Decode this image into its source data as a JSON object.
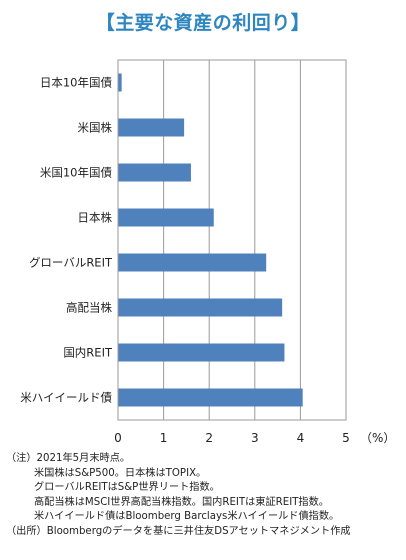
{
  "title": "【主要な資産の利回り】",
  "chart_data": {
    "type": "bar",
    "orientation": "horizontal",
    "categories": [
      "日本10年国債",
      "米国株",
      "米国10年国債",
      "日本株",
      "グローバルREIT",
      "高配当株",
      "国内REIT",
      "米ハイイールド債"
    ],
    "values": [
      0.08,
      1.45,
      1.6,
      2.1,
      3.25,
      3.6,
      3.65,
      4.05
    ],
    "xlim": [
      0,
      5
    ],
    "xticks": [
      "0",
      "1",
      "2",
      "3",
      "4",
      "5"
    ],
    "unit": "（%）",
    "grid": true,
    "bar_color": "#4f81bd"
  },
  "notes": {
    "line1": "（注）2021年5月末時点。",
    "line2": "米国株はS&P500。日本株はTOPIX。",
    "line3": "グローバルREITはS&P世界リート指数。",
    "line4": "高配当株はMSCI世界高配当株指数。国内REITは東証REIT指数。",
    "line5": "米ハイイールド債はBloomberg Barclays米ハイイールド債指数。",
    "line6": "（出所）Bloombergのデータを基に三井住友DSアセットマネジメント作成"
  }
}
